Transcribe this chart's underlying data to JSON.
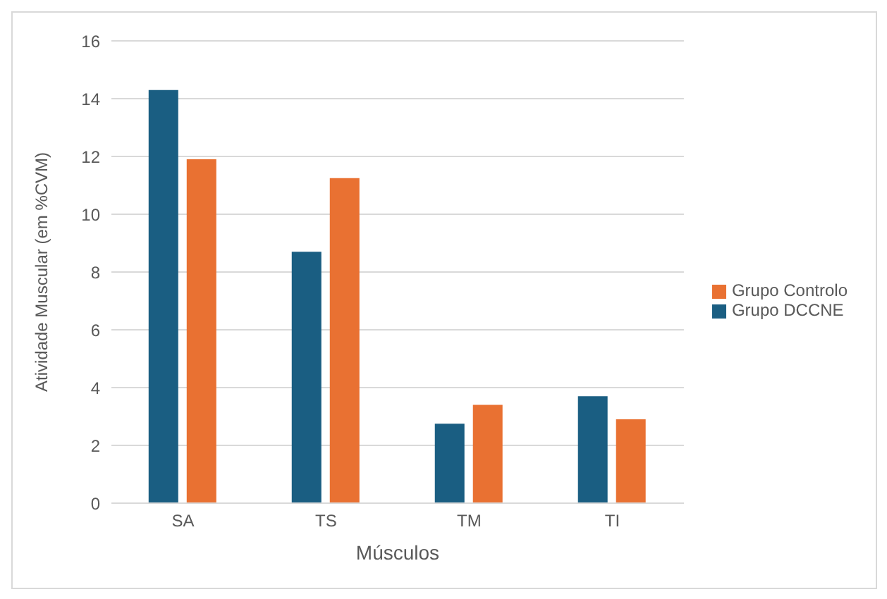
{
  "chart_data": {
    "type": "bar",
    "xlabel": "Músculos",
    "ylabel": "Atividade Muscular (em %CVM)",
    "categories": [
      "SA",
      "TS",
      "TM",
      "TI"
    ],
    "series": [
      {
        "name": "Grupo DCCNE",
        "color": "#1a5e82",
        "values": [
          14.3,
          8.7,
          2.75,
          3.7
        ]
      },
      {
        "name": "Grupo Controlo",
        "color": "#e97132",
        "values": [
          11.9,
          11.25,
          3.4,
          2.9
        ]
      }
    ],
    "ylim": [
      0,
      16
    ],
    "yticks": [
      0,
      2,
      4,
      6,
      8,
      10,
      12,
      14,
      16
    ],
    "grid": "y",
    "legend": "right"
  }
}
